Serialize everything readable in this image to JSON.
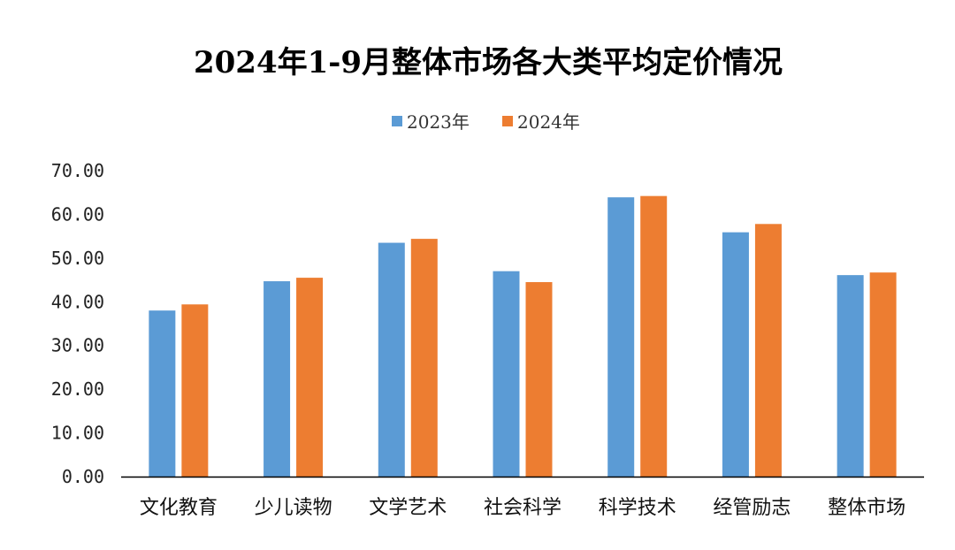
{
  "chart_data": {
    "type": "bar",
    "title": "2024年1-9月整体市场各大类平均定价情况",
    "xlabel": "",
    "ylabel": "",
    "ylim": [
      0,
      70
    ],
    "yticks": [
      "0.00",
      "10.00",
      "20.00",
      "30.00",
      "40.00",
      "50.00",
      "60.00",
      "70.00"
    ],
    "grid": false,
    "legend_position": "top",
    "categories": [
      "文化教育",
      "少儿读物",
      "文学艺术",
      "社会科学",
      "科学技术",
      "经管励志",
      "整体市场"
    ],
    "series": [
      {
        "name": "2023年",
        "color": "#5B9BD5",
        "values": [
          38.0,
          44.7,
          53.5,
          47.0,
          63.9,
          55.9,
          46.1
        ]
      },
      {
        "name": "2024年",
        "color": "#ED7D31",
        "values": [
          39.4,
          45.5,
          54.4,
          44.5,
          64.2,
          57.8,
          46.7
        ]
      }
    ]
  }
}
